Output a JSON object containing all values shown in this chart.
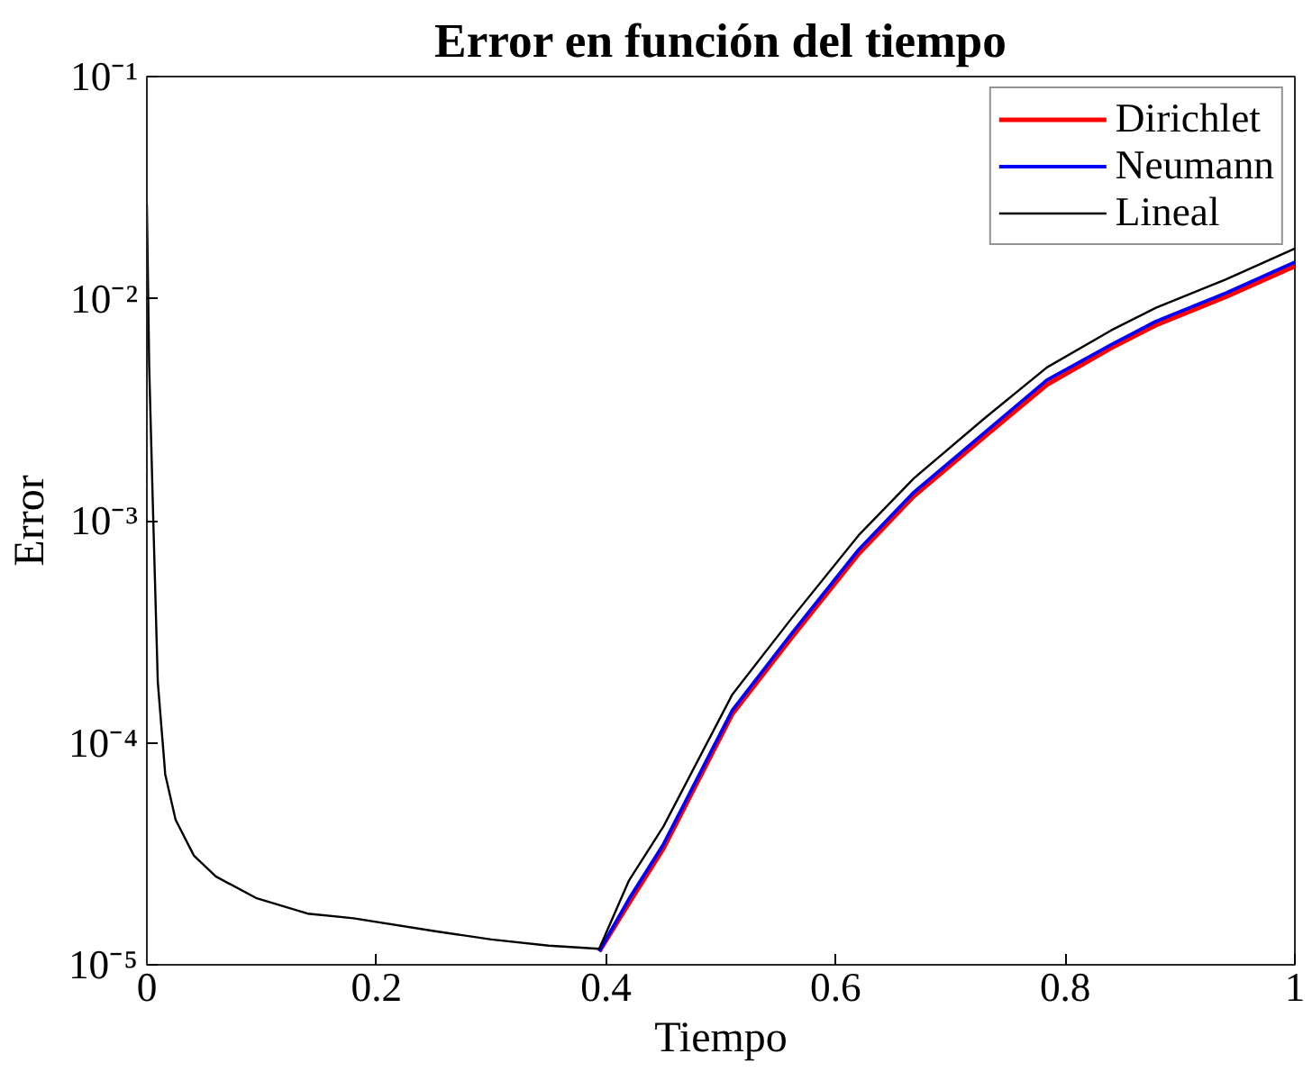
{
  "chart_data": {
    "type": "line",
    "title": "Error en función del tiempo",
    "xlabel": "Tiempo",
    "ylabel": "Error",
    "log": "y",
    "grid": false,
    "legend": "top right",
    "line_style": "solid",
    "marker": "none",
    "x": [
      0,
      0.002,
      0.005,
      0.0095,
      0.016,
      0.025,
      0.041,
      0.06,
      0.095,
      0.14,
      0.18,
      0.25,
      0.3,
      0.35,
      0.394,
      0.42,
      0.45,
      0.51,
      0.561,
      0.62,
      0.668,
      0.73,
      0.784,
      0.84,
      0.879,
      0.94,
      1.0
    ],
    "series": [
      {
        "name": "Dirichlet",
        "color": "#ff0000",
        "values": [
          null,
          null,
          null,
          null,
          null,
          null,
          null,
          null,
          null,
          null,
          null,
          null,
          null,
          null,
          1.15e-05,
          1.9e-05,
          3.35e-05,
          0.000135,
          0.000295,
          0.00071,
          0.00129,
          0.0024,
          0.0041,
          0.006,
          0.0076,
          0.0102,
          0.014
        ]
      },
      {
        "name": "Neumann",
        "color": "#0000ff",
        "values": [
          null,
          null,
          null,
          null,
          null,
          null,
          null,
          null,
          null,
          null,
          null,
          null,
          null,
          null,
          1.15e-05,
          1.98e-05,
          3.49e-05,
          0.00014,
          0.000307,
          0.00074,
          0.00134,
          0.0025,
          0.0043,
          0.0062,
          0.0079,
          0.0106,
          0.0146
        ]
      },
      {
        "name": "Lineal",
        "color": "#000000",
        "values": [
          0.0266,
          0.005,
          0.00129,
          0.000188,
          7.2e-05,
          4.5e-05,
          3.1e-05,
          2.5e-05,
          2e-05,
          1.7e-05,
          1.62e-05,
          1.42e-05,
          1.3e-05,
          1.22e-05,
          1.18e-05,
          2.4e-05,
          4.2e-05,
          0.000165,
          0.00036,
          0.00086,
          0.00155,
          0.0029,
          0.0049,
          0.0072,
          0.0091,
          0.0122,
          0.0168
        ]
      }
    ],
    "xlim": [
      0,
      1
    ],
    "xticks": [
      0,
      0.2,
      0.4,
      0.6,
      0.8,
      1
    ],
    "ylim": [
      1e-05,
      0.1
    ],
    "yticks": [
      {
        "value": 1e-05,
        "label": "10⁻⁵"
      },
      {
        "value": 0.0001,
        "label": "10⁻⁴"
      },
      {
        "value": 0.001,
        "label": "10⁻³"
      },
      {
        "value": 0.01,
        "label": "10⁻²"
      },
      {
        "value": 0.1,
        "label": "10⁻¹"
      }
    ]
  }
}
